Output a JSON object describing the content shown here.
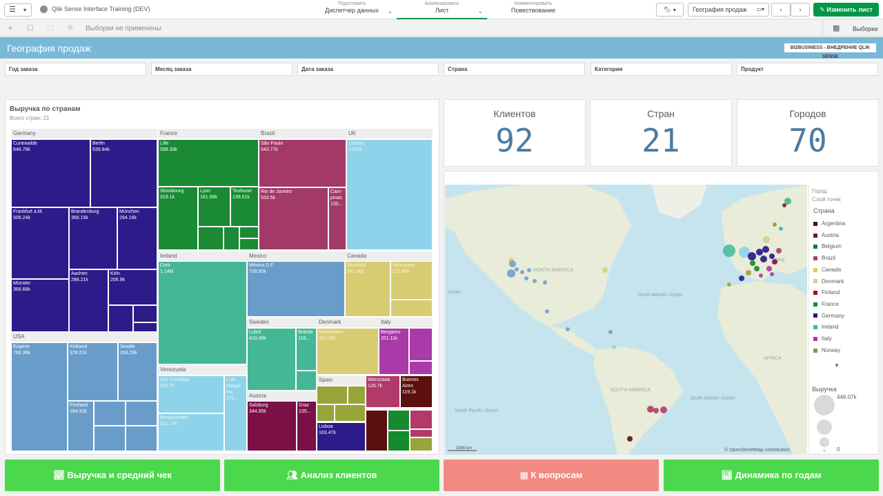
{
  "app": {
    "menu_icon": "menu-icon",
    "title": "Qlik Sense Interface Training (DEV)"
  },
  "nav": {
    "prepare": {
      "sub": "Подготовить",
      "main": "Диспетчер данных"
    },
    "analyze": {
      "sub": "Анализировать",
      "main": "Лист"
    },
    "narrate": {
      "sub": "Комментировать",
      "main": "Повествование"
    }
  },
  "toolbar": {
    "sheet_name": "География продаж",
    "edit_label": "Изменить лист"
  },
  "selections": {
    "none_label": "Выборки не применены",
    "selections_label": "Выборки"
  },
  "sheet": {
    "title": "География продаж",
    "brand": "BI2BUSINESS - ВНЕДРЕНИЕ QLIK SENSE"
  },
  "filters": [
    "Год заказа",
    "Месяц заказа",
    "Дата заказа",
    "Страна",
    "Категория",
    "Продукт"
  ],
  "treemap": {
    "title": "Выручка по странам",
    "subtitle": "Всего стран: 21",
    "groups": {
      "germany": "Germany",
      "france": "France",
      "brazil": "Brazil",
      "uk": "UK",
      "usa": "USA",
      "ireland": "Ireland",
      "mexico": "Mexico",
      "canada": "Canada",
      "venezuela": "Venezuela",
      "sweden": "Sweden",
      "denmark": "Denmark",
      "italy": "Italy",
      "austria": "Austria",
      "spain": "Spain"
    },
    "tiles": {
      "cunewalde": {
        "name": "Cunewalde",
        "value": "646.76k"
      },
      "berlin": {
        "name": "Berlin",
        "value": "539.84k"
      },
      "frankfurt": {
        "name": "Frankfurt a.M.",
        "value": "506.24k"
      },
      "brandenburg": {
        "name": "Brandenburg",
        "value": "368.15k"
      },
      "munchen": {
        "name": "München",
        "value": "294.16k"
      },
      "munster": {
        "name": "Münster",
        "value": "368.66k"
      },
      "aachen": {
        "name": "Aachen",
        "value": "288.21k"
      },
      "koln": {
        "name": "Köln",
        "value": "206.9k"
      },
      "lille": {
        "name": "Lille",
        "value": "599.33k"
      },
      "strasbourg": {
        "name": "Strasbourg",
        "value": "319.1k"
      },
      "lyon": {
        "name": "Lyon",
        "value": "161.58k"
      },
      "toulouse": {
        "name": "Toulouse",
        "value": "139.61k"
      },
      "saopaulo": {
        "name": "São Paulo",
        "value": "543.77k"
      },
      "rio": {
        "name": "Rio de Janeiro",
        "value": "533.5k"
      },
      "campinas": {
        "name": "Cam-pinas",
        "value": "135..."
      },
      "london": {
        "name": "London",
        "value": "1.07M"
      },
      "eugene": {
        "name": "Eugene",
        "value": "766.36k"
      },
      "kirkland": {
        "name": "Kirkland",
        "value": "378.21k"
      },
      "seattle": {
        "name": "Seattle",
        "value": "283.29k"
      },
      "portland": {
        "name": "Portland",
        "value": "164.91k"
      },
      "cork": {
        "name": "Cork",
        "value": "1.14M"
      },
      "mexicodf": {
        "name": "México D.F.",
        "value": "729.92k"
      },
      "montreal": {
        "name": "Montréal",
        "value": "341.06k"
      },
      "vancouver": {
        "name": "Vancouver",
        "value": "221.88k"
      },
      "sancristobal": {
        "name": "San Cristóbal",
        "value": "337.7k"
      },
      "ldemargarita": {
        "name": "I. de Marga-rita",
        "value": "171..."
      },
      "barquisimeto": {
        "name": "Barquisimeto",
        "value": "321.73k"
      },
      "lulea": {
        "name": "Luleå",
        "value": "410.49k"
      },
      "bracke": {
        "name": "Bräcke",
        "value": "119..."
      },
      "kobenhavn": {
        "name": "København",
        "value": "407.26k"
      },
      "bergamo": {
        "name": "Bergamo",
        "value": "201.11k"
      },
      "salzburg": {
        "name": "Salzburg",
        "value": "344.85k"
      },
      "graz": {
        "name": "Graz",
        "value": "135..."
      },
      "lisboa": {
        "name": "Lisboa",
        "value": "163.47k"
      },
      "warszawa": {
        "name": "Warszawa",
        "value": "126.7k"
      },
      "buenosaires": {
        "name": "Buenos Aires",
        "value": "119.1k"
      }
    }
  },
  "kpis": [
    {
      "title": "Клиентов",
      "value": "92"
    },
    {
      "title": "Стран",
      "value": "21"
    },
    {
      "title": "Городов",
      "value": "70"
    }
  ],
  "map": {
    "labels": {
      "north_america": "NORTH AMERICA",
      "south_america": "SOUTH AMERICA",
      "africa": "AFRICA",
      "europe": "OPE",
      "north_atlantic": "North Atlantic Ocean",
      "south_atlantic": "South Atlantic Ocean",
      "south_pacific": "South Pacific Ocean",
      "ocean_left": "ocean"
    },
    "scale": "2000 km",
    "attribution": "© OpenStreetMap contributors",
    "legend": {
      "layer_city": "Город",
      "layer_points": "Слой точек",
      "country_title": "Страна",
      "countries": [
        {
          "name": "Argentina",
          "color": "#5c0f0f"
        },
        {
          "name": "Austria",
          "color": "#7a1046"
        },
        {
          "name": "Belgium",
          "color": "#1b7a3e"
        },
        {
          "name": "Brazil",
          "color": "#b23a6a"
        },
        {
          "name": "Canada",
          "color": "#d7cc6f"
        },
        {
          "name": "Denmark",
          "color": "#d4d08a"
        },
        {
          "name": "Finland",
          "color": "#8c1a1a"
        },
        {
          "name": "France",
          "color": "#168a2e"
        },
        {
          "name": "Germany",
          "color": "#26168a"
        },
        {
          "name": "Ireland",
          "color": "#40b89a"
        },
        {
          "name": "Italy",
          "color": "#a93aa8"
        },
        {
          "name": "Norway",
          "color": "#8e9a2e"
        }
      ],
      "revenue_title": "Выручка",
      "revenue_max": "446.07k",
      "revenue_min": "0"
    }
  },
  "buttons": [
    {
      "label": "Выручка и средний чек",
      "color": "#4cd84c"
    },
    {
      "label": "Анализ клиентов",
      "color": "#4cd84c"
    },
    {
      "label": "К вопросам",
      "color": "#f28a82"
    },
    {
      "label": "Динамика по годам",
      "color": "#4cd84c"
    }
  ]
}
